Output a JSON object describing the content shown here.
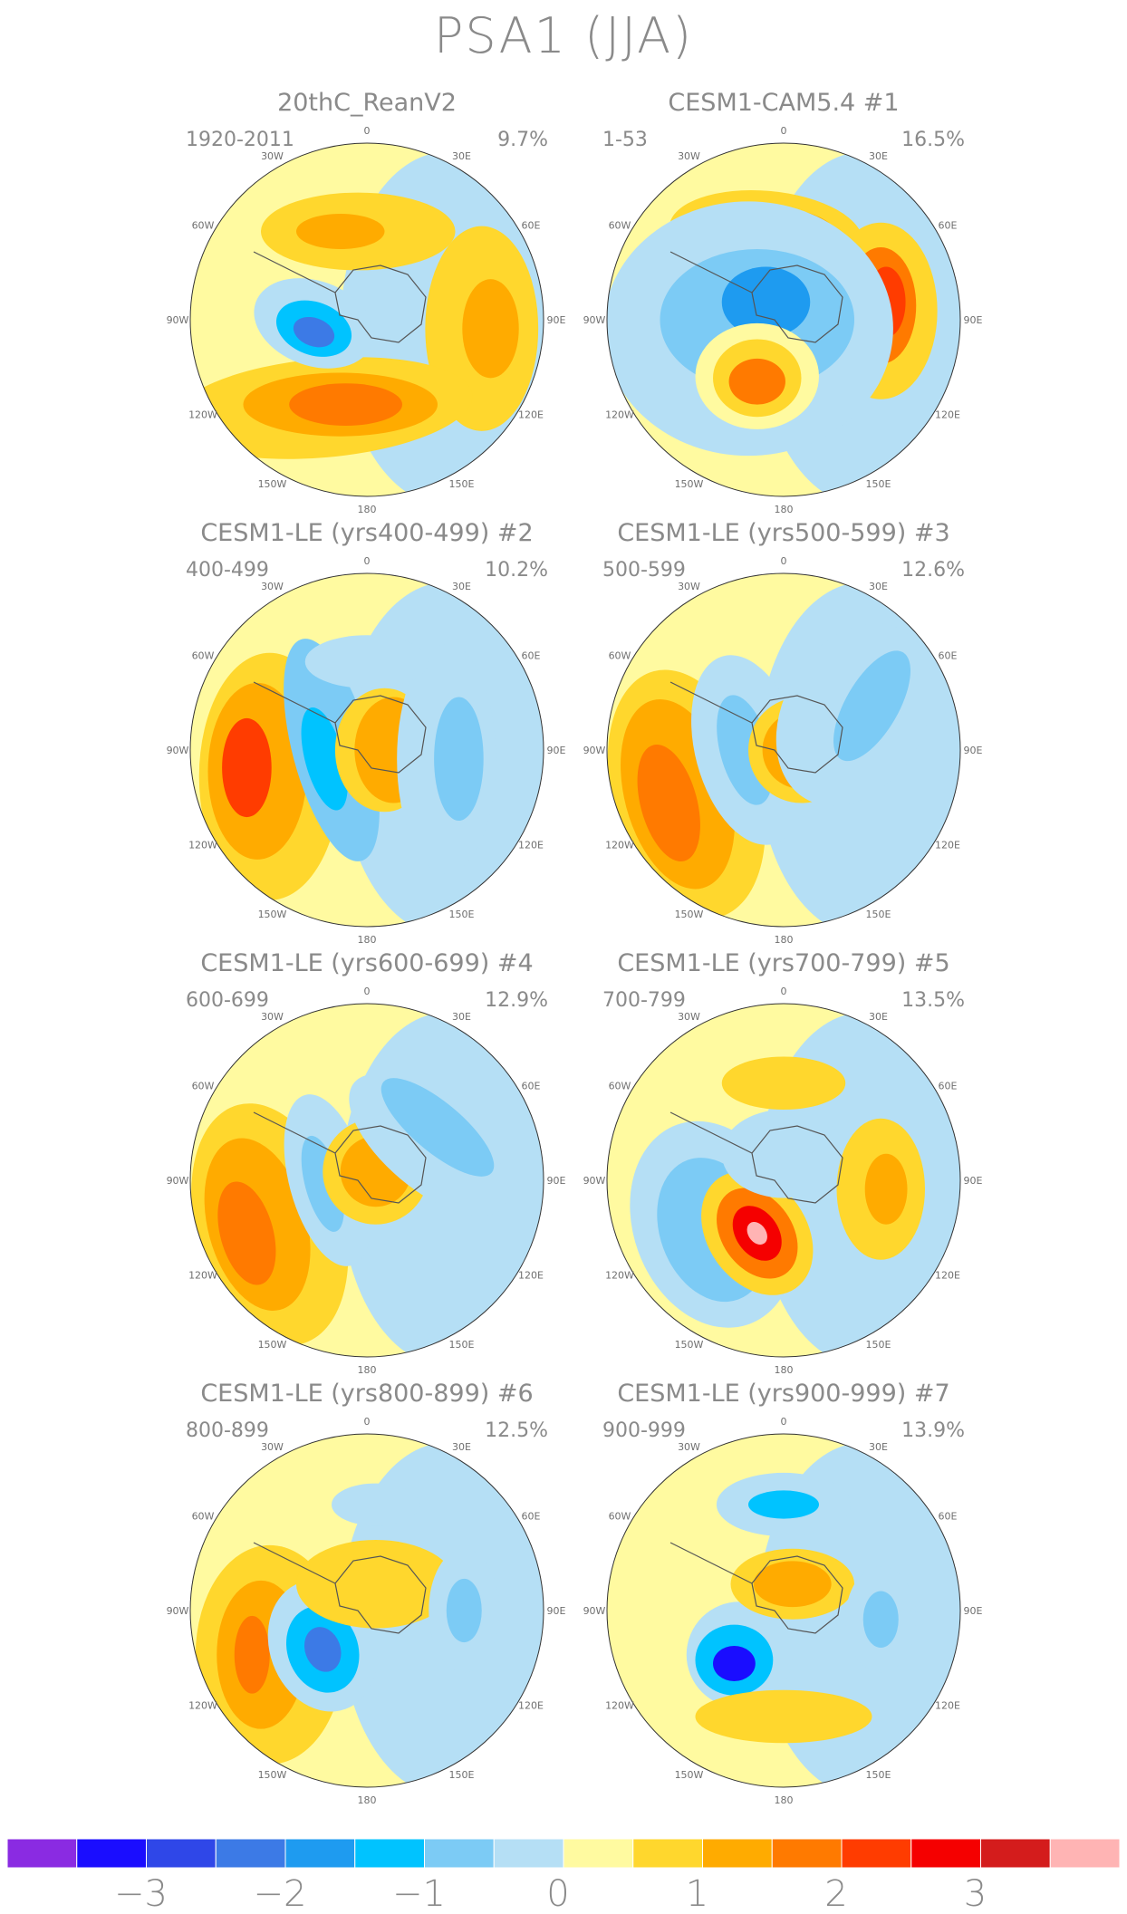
{
  "title": "PSA1 (JJA)",
  "palette": [
    "#8a2be2",
    "#1a0dff",
    "#2f47e8",
    "#3c7ae6",
    "#1e9bf0",
    "#00c3ff",
    "#7ccbf5",
    "#b5dff5",
    "#fffaa0",
    "#ffd72d",
    "#ffab00",
    "#ff7a00",
    "#ff3c00",
    "#f50000",
    "#d41c1c",
    "#ffb4b4"
  ],
  "colorbar": {
    "ticks": [
      "−3",
      "−2",
      "−1",
      "0",
      "1",
      "2",
      "3"
    ]
  },
  "lon_labels": [
    "0",
    "30E",
    "60E",
    "90E",
    "120E",
    "150E",
    "180",
    "150W",
    "120W",
    "90W",
    "60W",
    "30W"
  ],
  "panels": [
    {
      "title": "20thC_ReanV2",
      "period": "1920-2011",
      "variance": "9.7%"
    },
    {
      "title": "CESM1-CAM5.4        #1",
      "period": "1-53",
      "variance": "16.5%"
    },
    {
      "title": "CESM1-LE (yrs400-499) #2",
      "period": "400-499",
      "variance": "10.2%"
    },
    {
      "title": "CESM1-LE (yrs500-599) #3",
      "period": "500-599",
      "variance": "12.6%"
    },
    {
      "title": "CESM1-LE (yrs600-699) #4",
      "period": "600-699",
      "variance": "12.9%"
    },
    {
      "title": "CESM1-LE (yrs700-799) #5",
      "period": "700-799",
      "variance": "13.5%"
    },
    {
      "title": "CESM1-LE (yrs800-899) #6",
      "period": "800-899",
      "variance": "12.5%"
    },
    {
      "title": "CESM1-LE (yrs900-999) #7",
      "period": "900-999",
      "variance": "13.9%"
    }
  ],
  "chart_data": {
    "type": "heatmap",
    "title": "PSA1 (JJA)",
    "projection": "south-polar-stereographic",
    "colorbar_range": [
      -3.5,
      4.0
    ],
    "colorbar_ticks": [
      -3,
      -2,
      -1,
      0,
      1,
      2,
      3
    ],
    "series": [
      {
        "name": "20thC_ReanV2",
        "years": "1920-2011",
        "explained_variance_pct": 9.7
      },
      {
        "name": "CESM1-CAM5.4 #1",
        "years": "1-53",
        "explained_variance_pct": 16.5
      },
      {
        "name": "CESM1-LE (yrs400-499) #2",
        "years": "400-499",
        "explained_variance_pct": 10.2
      },
      {
        "name": "CESM1-LE (yrs500-599) #3",
        "years": "500-599",
        "explained_variance_pct": 12.6
      },
      {
        "name": "CESM1-LE (yrs600-699) #4",
        "years": "600-699",
        "explained_variance_pct": 12.9
      },
      {
        "name": "CESM1-LE (yrs700-799) #5",
        "years": "700-799",
        "explained_variance_pct": 13.5
      },
      {
        "name": "CESM1-LE (yrs800-899) #6",
        "years": "800-899",
        "explained_variance_pct": 12.5
      },
      {
        "name": "CESM1-LE (yrs900-999) #7",
        "years": "900-999",
        "explained_variance_pct": 13.9
      }
    ]
  }
}
